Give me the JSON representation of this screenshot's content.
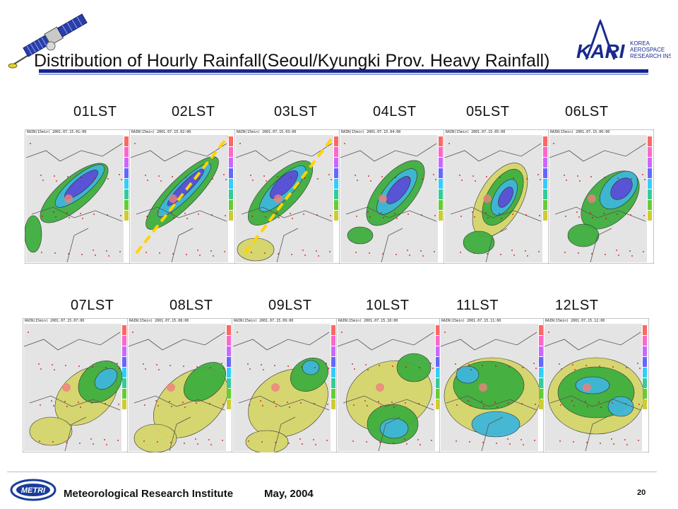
{
  "slide": {
    "title": "Distribution of Hourly Rainfall(Seoul/Kyungki Prov. Heavy Rainfall)",
    "page_number": "20"
  },
  "panels_row1": [
    {
      "label": "01LST",
      "caption": "RAIN(15min) 2001.07.15.01:00"
    },
    {
      "label": "02LST",
      "caption": "RAIN(15min) 2001.07.15.02:00"
    },
    {
      "label": "03LST",
      "caption": "RAIN(15min) 2001.07.15.03:00"
    },
    {
      "label": "04LST",
      "caption": "RAIN(15min) 2001.07.15.04:00"
    },
    {
      "label": "05LST",
      "caption": "RAIN(15min) 2001.07.15.05:00"
    },
    {
      "label": "06LST",
      "caption": "RAIN(15min) 2001.07.15.06:00"
    }
  ],
  "panels_row2": [
    {
      "label": "07LST",
      "caption": "RAIN(15min) 2001.07.15.07:00"
    },
    {
      "label": "08LST",
      "caption": "RAIN(15min) 2001.07.15.08:00"
    },
    {
      "label": "09LST",
      "caption": "RAIN(15min) 2001.07.15.09:00"
    },
    {
      "label": "10LST",
      "caption": "RAIN(15min) 2001.07.15.10:00"
    },
    {
      "label": "11LST",
      "caption": "RAIN(15min) 2001.07.15.11:00"
    },
    {
      "label": "12LST",
      "caption": "RAIN(15min) 2001.07.15.12:00"
    }
  ],
  "logos": {
    "kari_letters": "KARI",
    "kari_name_line1": "Korea",
    "kari_name_line2": "Aerospace",
    "kari_name_line3": "Research Institute",
    "metri_letters": "METRI"
  },
  "footer": {
    "institute": "Meteorological Research Institute",
    "date": "May, 2004"
  },
  "colors": {
    "accent_rule": "#16248f",
    "rain_heavy": "#5a4fd6",
    "rain_medium": "#3fb7d9",
    "rain_light": "#3fae3f",
    "rain_trace": "#d6d66a",
    "dashed_axis": "#ffd400"
  }
}
